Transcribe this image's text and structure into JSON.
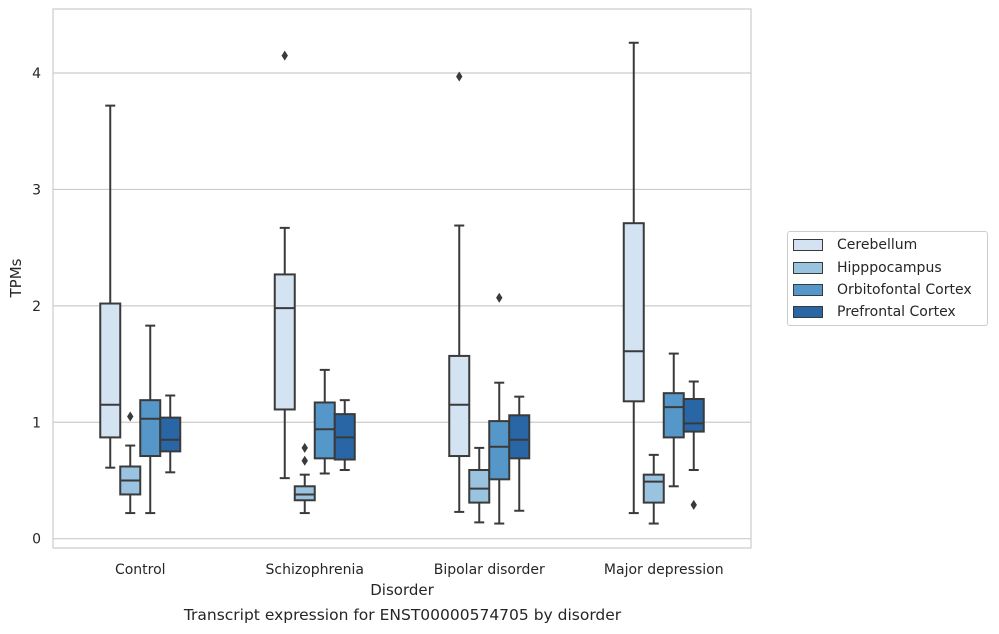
{
  "chart_data": {
    "type": "boxplot",
    "title": "Transcript expression for ENST00000574705 by disorder",
    "xlabel": "Disorder",
    "ylabel": "TPMs",
    "ylim": [
      -0.08,
      4.55
    ],
    "yticks": [
      0,
      1,
      2,
      3,
      4
    ],
    "grid": true,
    "legend_position": "right",
    "categories": [
      "Control",
      "Schizophrenia",
      "Bipolar disorder",
      "Major depression"
    ],
    "series": [
      {
        "name": "Cerebellum",
        "color": "#d3e3f2",
        "boxes": [
          {
            "whisker_low": 0.61,
            "q1": 0.87,
            "median": 1.15,
            "q3": 2.02,
            "whisker_high": 3.72,
            "outliers": []
          },
          {
            "whisker_low": 0.52,
            "q1": 1.11,
            "median": 1.98,
            "q3": 2.27,
            "whisker_high": 2.67,
            "outliers": [
              4.15
            ]
          },
          {
            "whisker_low": 0.23,
            "q1": 0.71,
            "median": 1.15,
            "q3": 1.57,
            "whisker_high": 2.69,
            "outliers": [
              3.97
            ]
          },
          {
            "whisker_low": 0.22,
            "q1": 1.18,
            "median": 1.61,
            "q3": 2.71,
            "whisker_high": 4.26,
            "outliers": []
          }
        ]
      },
      {
        "name": "Hipppocampus",
        "color": "#9ac3df",
        "boxes": [
          {
            "whisker_low": 0.22,
            "q1": 0.38,
            "median": 0.5,
            "q3": 0.62,
            "whisker_high": 0.8,
            "outliers": [
              1.05
            ]
          },
          {
            "whisker_low": 0.22,
            "q1": 0.33,
            "median": 0.38,
            "q3": 0.45,
            "whisker_high": 0.55,
            "outliers": [
              0.67,
              0.78
            ]
          },
          {
            "whisker_low": 0.14,
            "q1": 0.31,
            "median": 0.43,
            "q3": 0.59,
            "whisker_high": 0.78,
            "outliers": []
          },
          {
            "whisker_low": 0.13,
            "q1": 0.31,
            "median": 0.49,
            "q3": 0.55,
            "whisker_high": 0.72,
            "outliers": []
          }
        ]
      },
      {
        "name": "Orbitofontal Cortex",
        "color": "#5597c9",
        "boxes": [
          {
            "whisker_low": 0.22,
            "q1": 0.71,
            "median": 1.03,
            "q3": 1.19,
            "whisker_high": 1.83,
            "outliers": []
          },
          {
            "whisker_low": 0.56,
            "q1": 0.69,
            "median": 0.94,
            "q3": 1.17,
            "whisker_high": 1.45,
            "outliers": []
          },
          {
            "whisker_low": 0.13,
            "q1": 0.51,
            "median": 0.79,
            "q3": 1.01,
            "whisker_high": 1.34,
            "outliers": [
              2.07
            ]
          },
          {
            "whisker_low": 0.45,
            "q1": 0.87,
            "median": 1.13,
            "q3": 1.25,
            "whisker_high": 1.59,
            "outliers": []
          }
        ]
      },
      {
        "name": "Prefrontal Cortex",
        "color": "#2866a6",
        "boxes": [
          {
            "whisker_low": 0.57,
            "q1": 0.75,
            "median": 0.85,
            "q3": 1.04,
            "whisker_high": 1.23,
            "outliers": []
          },
          {
            "whisker_low": 0.59,
            "q1": 0.68,
            "median": 0.87,
            "q3": 1.07,
            "whisker_high": 1.19,
            "outliers": []
          },
          {
            "whisker_low": 0.24,
            "q1": 0.69,
            "median": 0.85,
            "q3": 1.06,
            "whisker_high": 1.22,
            "outliers": []
          },
          {
            "whisker_low": 0.59,
            "q1": 0.92,
            "median": 0.99,
            "q3": 1.2,
            "whisker_high": 1.35,
            "outliers": [
              0.29
            ]
          }
        ]
      }
    ]
  }
}
